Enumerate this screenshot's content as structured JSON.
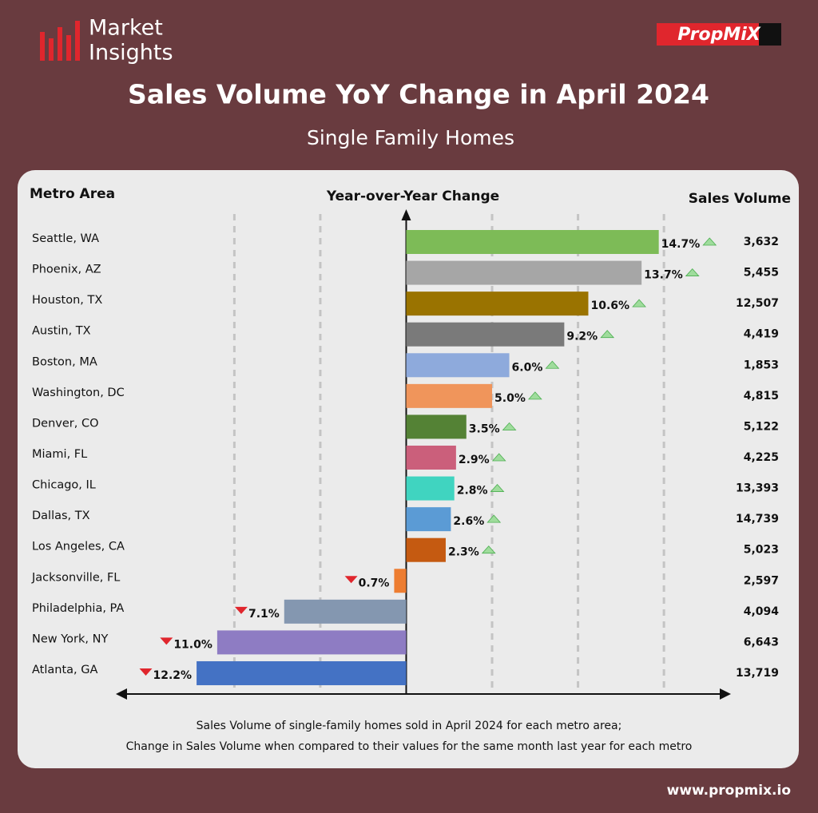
{
  "logo": {
    "lines": [
      "Market",
      "Insights"
    ]
  },
  "brand": "PropMiX",
  "website": "www.propmix.io",
  "chart_data": {
    "type": "bar",
    "orientation": "horizontal",
    "title": "Sales Volume YoY Change in April 2024",
    "subtitle": "Single Family Homes",
    "category_header": "Metro Area",
    "value_header": "Year-over-Year Change",
    "volume_header": "Sales Volume",
    "categories": [
      "Seattle, WA",
      "Phoenix, AZ",
      "Houston, TX",
      "Austin, TX",
      "Boston, MA",
      "Washington, DC",
      "Denver, CO",
      "Miami, FL",
      "Chicago, IL",
      "Dallas, TX",
      "Los Angeles, CA",
      "Jacksonville, FL",
      "Philadelphia, PA",
      "New York, NY",
      "Atlanta, GA"
    ],
    "values": [
      14.7,
      13.7,
      10.6,
      9.2,
      6.0,
      5.0,
      3.5,
      2.9,
      2.8,
      2.6,
      2.3,
      -0.7,
      -7.1,
      -11.0,
      -12.2
    ],
    "value_labels": [
      "14.7%",
      "13.7%",
      "10.6%",
      "9.2%",
      "6.0%",
      "5.0%",
      "3.5%",
      "2.9%",
      "2.8%",
      "2.6%",
      "2.3%",
      "0.7%",
      "7.1%",
      "11.0%",
      "12.2%"
    ],
    "colors": [
      "#7dbb57",
      "#a6a6a6",
      "#9a7300",
      "#7a7a7a",
      "#8eaadc",
      "#f0955b",
      "#548235",
      "#cb5f7b",
      "#40d4c0",
      "#5b9bd5",
      "#c55a11",
      "#ed7d31",
      "#8497b0",
      "#8e7cc3",
      "#4472c4"
    ],
    "sales_volume": [
      "3,632",
      "5,455",
      "12,507",
      "4,419",
      "1,853",
      "4,815",
      "5,122",
      "4,225",
      "13,393",
      "14,739",
      "5,023",
      "2,597",
      "4,094",
      "6,643",
      "13,719"
    ],
    "xlim": [
      -16.9,
      18.9
    ],
    "gridlines": [
      -10,
      -5,
      5,
      10,
      15
    ],
    "footnote": [
      "Sales Volume of single-family homes sold in April 2024 for each metro area;",
      "Change in Sales Volume when compared to their values for the same month last year for each metro"
    ]
  }
}
